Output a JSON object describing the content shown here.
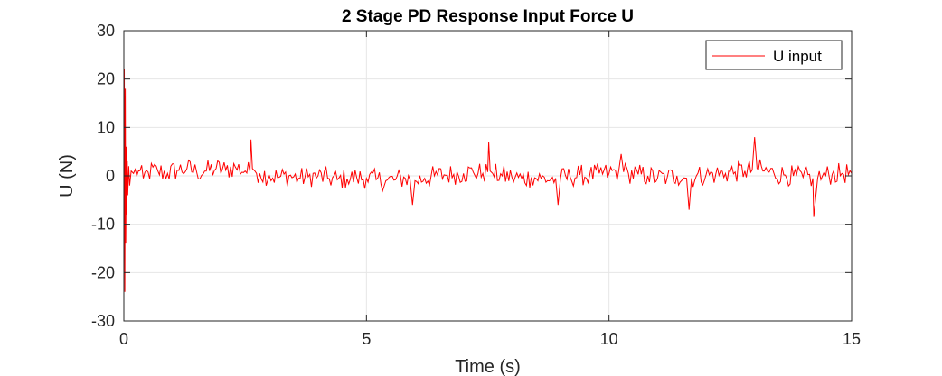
{
  "chart_data": {
    "type": "line",
    "title": "2 Stage PD Response  Input Force U",
    "xlabel": "Time (s)",
    "ylabel": "U (N)",
    "xlim": [
      0,
      15
    ],
    "ylim": [
      -30,
      30
    ],
    "xticks": [
      0,
      5,
      10,
      15
    ],
    "yticks": [
      -30,
      -20,
      -10,
      0,
      10,
      20,
      30
    ],
    "xtick_labels": [
      "0",
      "5",
      "10",
      "15"
    ],
    "ytick_labels": [
      "-30",
      "-20",
      "-10",
      "0",
      "10",
      "20",
      "30"
    ],
    "grid": true,
    "legend": {
      "position": "top-right"
    },
    "series": [
      {
        "name": "U input",
        "color": "#ff0000",
        "x": [
          0,
          0.01,
          0.02,
          0.03,
          0.04,
          0.05,
          0.06,
          0.07,
          0.08,
          0.1,
          0.12,
          0.15,
          0.2,
          0.3,
          0.4,
          0.5,
          0.7,
          0.9,
          1.1,
          1.3,
          1.5,
          1.7,
          1.9,
          2.1,
          2.3,
          2.5,
          2.6,
          2.62,
          2.65,
          2.7,
          2.8,
          3.0,
          3.2,
          3.4,
          3.6,
          3.8,
          4.0,
          4.2,
          4.4,
          4.6,
          4.8,
          5.0,
          5.2,
          5.4,
          5.6,
          5.8,
          5.9,
          5.95,
          6.0,
          6.2,
          6.4,
          6.6,
          6.8,
          7.0,
          7.2,
          7.4,
          7.5,
          7.52,
          7.55,
          7.6,
          7.8,
          8.0,
          8.2,
          8.4,
          8.6,
          8.8,
          8.9,
          8.95,
          9.0,
          9.2,
          9.4,
          9.6,
          9.8,
          10.0,
          10.2,
          10.25,
          10.3,
          10.4,
          10.6,
          10.8,
          11.0,
          11.2,
          11.4,
          11.6,
          11.65,
          11.7,
          11.8,
          12.0,
          12.2,
          12.4,
          12.6,
          12.8,
          12.95,
          13.0,
          13.05,
          13.2,
          13.4,
          13.6,
          13.8,
          14.0,
          14.2,
          14.22,
          14.3,
          14.4,
          14.6,
          14.8,
          15.0
        ],
        "y": [
          0,
          22,
          -24,
          18,
          -14,
          6,
          -8,
          3,
          -4,
          2,
          -2,
          1,
          0.5,
          1,
          -0.5,
          0.8,
          1,
          0.5,
          1.2,
          1.5,
          0.8,
          1.0,
          1.5,
          1.2,
          1.8,
          1.0,
          0.8,
          7.5,
          1.5,
          1.0,
          0.5,
          0,
          -0.3,
          0,
          -0.5,
          -0.2,
          0,
          -0.5,
          -0.8,
          -0.6,
          -0.4,
          -0.5,
          -0.8,
          -1.0,
          -0.8,
          -0.5,
          -0.8,
          -6.0,
          -1.0,
          -0.5,
          0,
          0.2,
          0.3,
          0.5,
          0.8,
          0.5,
          0.8,
          7.0,
          1.0,
          0.5,
          0,
          -0.3,
          -0.5,
          -0.3,
          -0.5,
          -0.8,
          -0.5,
          -6.0,
          -0.5,
          -0.2,
          0.2,
          0,
          0.5,
          0.5,
          1.0,
          4.5,
          0.8,
          0.5,
          0.3,
          0,
          -0.5,
          -0.3,
          0,
          -0.5,
          -7.0,
          -0.5,
          0,
          0.2,
          0.3,
          0.5,
          0.8,
          1.0,
          1.2,
          8.0,
          1.5,
          1.0,
          0.5,
          0.2,
          0,
          -0.3,
          -0.5,
          -8.5,
          -0.5,
          0,
          0.3,
          0.5,
          0.5
        ]
      }
    ]
  }
}
